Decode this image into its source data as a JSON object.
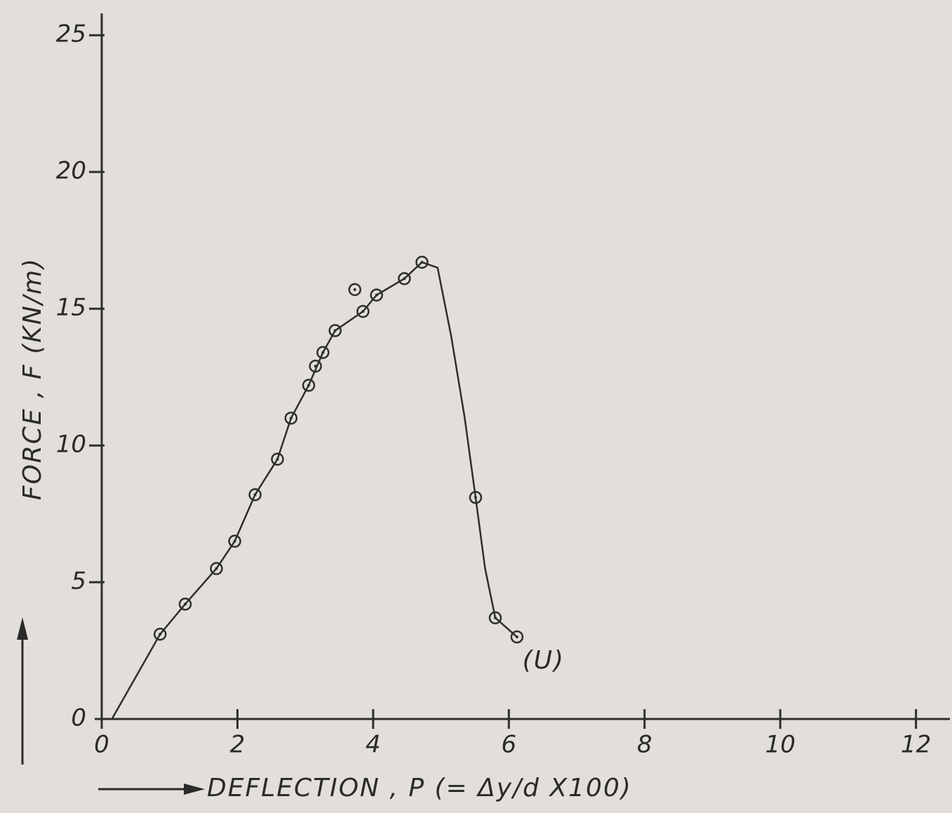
{
  "chart_data": {
    "type": "scatter",
    "y_label": "FORCE , F (KN/m)",
    "x_label": "DEFLECTION , P (= Δy/d X100)",
    "annotation": "(U)",
    "xlim": [
      0,
      12.5
    ],
    "ylim": [
      0,
      25.8
    ],
    "xticks": [
      0,
      2,
      4,
      6,
      8,
      10,
      12
    ],
    "yticks": [
      0,
      5,
      10,
      15,
      20,
      25
    ],
    "color": "#2e2e2e",
    "series": [
      {
        "x": [
          0.86,
          1.23,
          1.69,
          1.96,
          2.26,
          2.59,
          2.79,
          3.05,
          3.15,
          3.26,
          3.44,
          3.85,
          3.73,
          4.05,
          4.46,
          4.72,
          5.51,
          5.8,
          6.12
        ],
        "values": [
          3.1,
          4.2,
          5.5,
          6.5,
          8.2,
          9.5,
          11.0,
          12.2,
          12.9,
          13.4,
          14.2,
          14.9,
          15.7,
          15.5,
          16.1,
          16.7,
          8.1,
          3.7,
          3.0
        ],
        "marker": "circle"
      },
      {
        "x": [
          0.15,
          0.86,
          1.23,
          1.69,
          1.96,
          2.26,
          2.59,
          2.79,
          3.05,
          3.26,
          3.44,
          3.85,
          4.05,
          4.46,
          4.72,
          4.95,
          5.15,
          5.35,
          5.51,
          5.65,
          5.8,
          6.12
        ],
        "values": [
          0,
          3.1,
          4.2,
          5.5,
          6.5,
          8.2,
          9.5,
          11.0,
          12.2,
          13.4,
          14.2,
          14.9,
          15.5,
          16.1,
          16.7,
          16.5,
          14.0,
          11.0,
          8.1,
          5.5,
          3.7,
          3.0
        ],
        "marker": "line"
      }
    ]
  }
}
